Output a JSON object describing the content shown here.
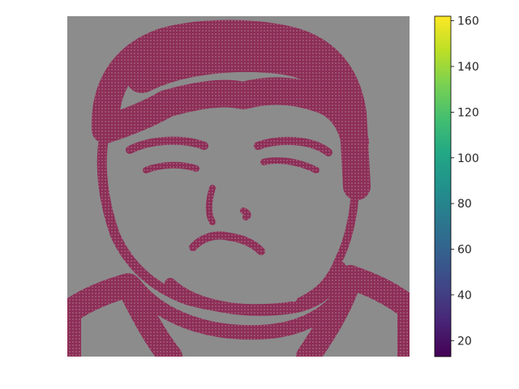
{
  "chart_data": {
    "type": "heatmap",
    "title": "",
    "xlabel": "",
    "ylabel": "",
    "axes_visible": false,
    "grid": false,
    "image": {
      "subject": "face",
      "background_color": "#8c8c8c",
      "feature_color": "#8e2a55",
      "dot_texture": true
    },
    "colorbar": {
      "colormap": "viridis",
      "orientation": "vertical",
      "placement": "right",
      "range": [
        13,
        162
      ],
      "ticks": [
        20,
        40,
        60,
        80,
        100,
        120,
        140,
        160
      ],
      "tick_labels": [
        "20",
        "40",
        "60",
        "80",
        "100",
        "120",
        "140",
        "160"
      ]
    }
  }
}
